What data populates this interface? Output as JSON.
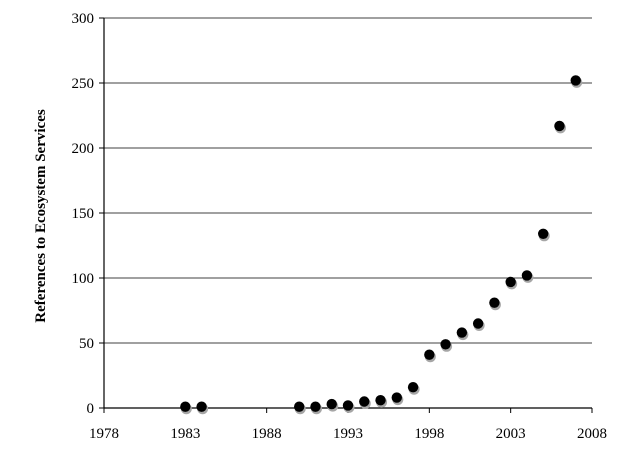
{
  "chart_data": {
    "type": "scatter",
    "title": "",
    "xlabel": "",
    "ylabel": "References to Ecosystem Services",
    "xlim": [
      1978,
      2008
    ],
    "ylim": [
      0,
      300
    ],
    "x_ticks": [
      1978,
      1983,
      1988,
      1993,
      1998,
      2003,
      2008
    ],
    "y_ticks": [
      0,
      50,
      100,
      150,
      200,
      250,
      300
    ],
    "grid": "horizontal",
    "legend": "none",
    "marker_color": "#000000",
    "shadow_color": "#a6a6a6",
    "series": [
      {
        "points": [
          {
            "x": 1983,
            "y": 1
          },
          {
            "x": 1984,
            "y": 1
          },
          {
            "x": 1990,
            "y": 1
          },
          {
            "x": 1991,
            "y": 1
          },
          {
            "x": 1992,
            "y": 3
          },
          {
            "x": 1993,
            "y": 2
          },
          {
            "x": 1994,
            "y": 5
          },
          {
            "x": 1995,
            "y": 6
          },
          {
            "x": 1996,
            "y": 8
          },
          {
            "x": 1997,
            "y": 16
          },
          {
            "x": 1998,
            "y": 41
          },
          {
            "x": 1999,
            "y": 49
          },
          {
            "x": 2000,
            "y": 58
          },
          {
            "x": 2001,
            "y": 65
          },
          {
            "x": 2002,
            "y": 81
          },
          {
            "x": 2003,
            "y": 97
          },
          {
            "x": 2004,
            "y": 102
          },
          {
            "x": 2005,
            "y": 134
          },
          {
            "x": 2006,
            "y": 217
          },
          {
            "x": 2007,
            "y": 252
          }
        ]
      }
    ]
  }
}
